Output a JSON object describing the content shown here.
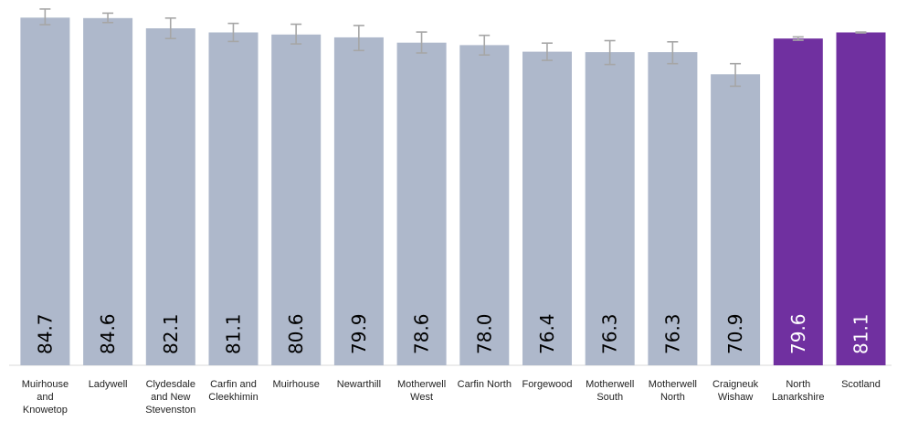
{
  "chart_data": {
    "type": "bar",
    "categories": [
      "Muirhouse and Knowetop",
      "Ladywell",
      "Clydesdale and New Stevenston",
      "Carfin and Cleekhimin",
      "Muirhouse",
      "Newarthill",
      "Motherwell West",
      "Carfin North",
      "Forgewood",
      "Motherwell South",
      "Motherwell North",
      "Craigneuk Wishaw",
      "North Lanarkshire",
      "Scotland"
    ],
    "category_lines": [
      [
        "Muirhouse",
        "and",
        "Knowetop"
      ],
      [
        "Ladywell"
      ],
      [
        "Clydesdale",
        "and New",
        "Stevenston"
      ],
      [
        "Carfin and",
        "Cleekhimin"
      ],
      [
        "Muirhouse"
      ],
      [
        "Newarthill"
      ],
      [
        "Motherwell",
        "West"
      ],
      [
        "Carfin North"
      ],
      [
        "Forgewood"
      ],
      [
        "Motherwell",
        "South"
      ],
      [
        "Motherwell",
        "North"
      ],
      [
        "Craigneuk",
        "Wishaw"
      ],
      [
        "North",
        "Lanarkshire"
      ],
      [
        "Scotland"
      ]
    ],
    "values": [
      84.7,
      84.6,
      82.1,
      81.1,
      80.6,
      79.9,
      78.6,
      78.0,
      76.4,
      76.3,
      76.3,
      70.9,
      79.6,
      81.1
    ],
    "labels": [
      "84.7",
      "84.6",
      "82.1",
      "81.1",
      "80.6",
      "79.9",
      "78.6",
      "78.0",
      "76.4",
      "76.3",
      "76.3",
      "70.9",
      "79.6",
      "81.1"
    ],
    "error_lower": [
      83.0,
      83.5,
      79.6,
      78.9,
      78.3,
      76.7,
      76.1,
      75.6,
      74.3,
      73.3,
      73.5,
      68.0,
      79.2,
      81.0
    ],
    "error_upper": [
      86.8,
      85.8,
      84.6,
      83.3,
      83.1,
      82.8,
      81.2,
      80.4,
      78.5,
      79.1,
      78.8,
      73.5,
      80.0,
      81.2
    ],
    "highlight": [
      false,
      false,
      false,
      false,
      false,
      false,
      false,
      false,
      false,
      false,
      false,
      false,
      true,
      true
    ],
    "colors": {
      "bar": "#aeb8cb",
      "highlight": "#7030a0",
      "error_bar": "#a6a6a6",
      "label_default": "#000000",
      "label_highlight": "#ffffff"
    },
    "ylim": [
      0,
      89
    ],
    "grid": false,
    "legend": "none"
  }
}
